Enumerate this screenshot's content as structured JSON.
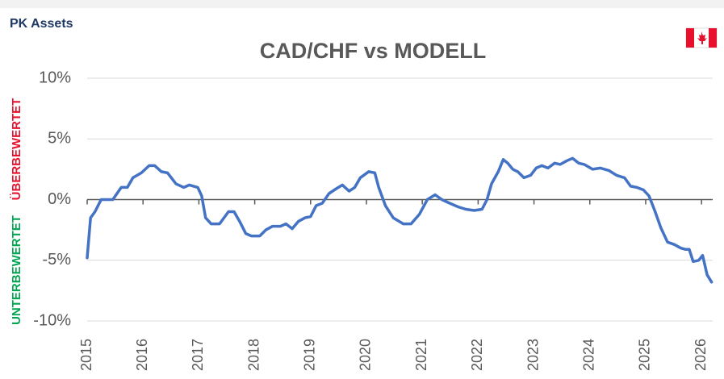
{
  "brand": "PK Assets",
  "chart_data": {
    "type": "line",
    "title": "CAD/CHF vs MODELL",
    "overvalued_label": "ÜBERBEWERTET",
    "undervalued_label": "UNTERBEWERTET",
    "x": [
      2015.0,
      2015.06,
      2015.14,
      2015.25,
      2015.46,
      2015.61,
      2015.72,
      2015.82,
      2015.97,
      2016.11,
      2016.21,
      2016.33,
      2016.44,
      2016.59,
      2016.73,
      2016.83,
      2016.98,
      2017.05,
      2017.12,
      2017.22,
      2017.37,
      2017.53,
      2017.63,
      2017.73,
      2017.84,
      2017.94,
      2018.09,
      2018.2,
      2018.32,
      2018.46,
      2018.56,
      2018.67,
      2018.78,
      2018.9,
      2019.0,
      2019.1,
      2019.21,
      2019.33,
      2019.46,
      2019.57,
      2019.69,
      2019.79,
      2019.89,
      2020.04,
      2020.15,
      2020.22,
      2020.34,
      2020.48,
      2020.66,
      2020.8,
      2020.95,
      2021.09,
      2021.23,
      2021.35,
      2021.49,
      2021.64,
      2021.78,
      2021.93,
      2022.07,
      2022.16,
      2022.24,
      2022.36,
      2022.45,
      2022.53,
      2022.62,
      2022.71,
      2022.82,
      2022.94,
      2023.04,
      2023.14,
      2023.25,
      2023.37,
      2023.47,
      2023.59,
      2023.69,
      2023.8,
      2023.9,
      2024.05,
      2024.19,
      2024.34,
      2024.48,
      2024.62,
      2024.73,
      2024.84,
      2024.96,
      2025.06,
      2025.17,
      2025.27,
      2025.39,
      2025.51,
      2025.63,
      2025.71,
      2025.78,
      2025.85,
      2025.95,
      2026.02,
      2026.1,
      2026.18
    ],
    "series": [
      {
        "name": "CAD/CHF vs MODELL",
        "color": "#4472c4",
        "values": [
          -4.8,
          -1.5,
          -1.0,
          0.0,
          0.0,
          1.0,
          1.0,
          1.8,
          2.2,
          2.8,
          2.8,
          2.3,
          2.2,
          1.3,
          1.0,
          1.2,
          1.0,
          0.3,
          -1.5,
          -2.0,
          -2.0,
          -1.0,
          -1.0,
          -1.8,
          -2.8,
          -3.0,
          -3.0,
          -2.5,
          -2.2,
          -2.2,
          -2.0,
          -2.4,
          -1.8,
          -1.5,
          -1.4,
          -0.5,
          -0.3,
          0.5,
          0.9,
          1.2,
          0.7,
          1.0,
          1.8,
          2.3,
          2.2,
          1.0,
          -0.5,
          -1.5,
          -2.0,
          -2.0,
          -1.2,
          0.0,
          0.4,
          0.0,
          -0.3,
          -0.6,
          -0.8,
          -0.9,
          -0.8,
          0.0,
          1.3,
          2.3,
          3.3,
          3.0,
          2.5,
          2.3,
          1.8,
          2.0,
          2.6,
          2.8,
          2.6,
          3.0,
          2.9,
          3.2,
          3.4,
          3.0,
          2.9,
          2.5,
          2.6,
          2.4,
          2.0,
          1.8,
          1.1,
          1.0,
          0.8,
          0.3,
          -1.0,
          -2.3,
          -3.5,
          -3.7,
          -4.0,
          -4.1,
          -4.1,
          -5.1,
          -5.0,
          -4.6,
          -6.2,
          -6.8
        ]
      }
    ],
    "xlim": [
      2015,
      2026.2
    ],
    "xticks": [
      2015,
      2016,
      2017,
      2018,
      2019,
      2020,
      2021,
      2022,
      2023,
      2024,
      2025,
      2026
    ],
    "ylim": [
      -10,
      10
    ],
    "yticks": [
      {
        "value": -10,
        "label": "-10%"
      },
      {
        "value": -5,
        "label": "-5%"
      },
      {
        "value": 0,
        "label": "0%"
      },
      {
        "value": 5,
        "label": "5%"
      },
      {
        "value": 10,
        "label": "10%"
      }
    ],
    "grid": true
  }
}
